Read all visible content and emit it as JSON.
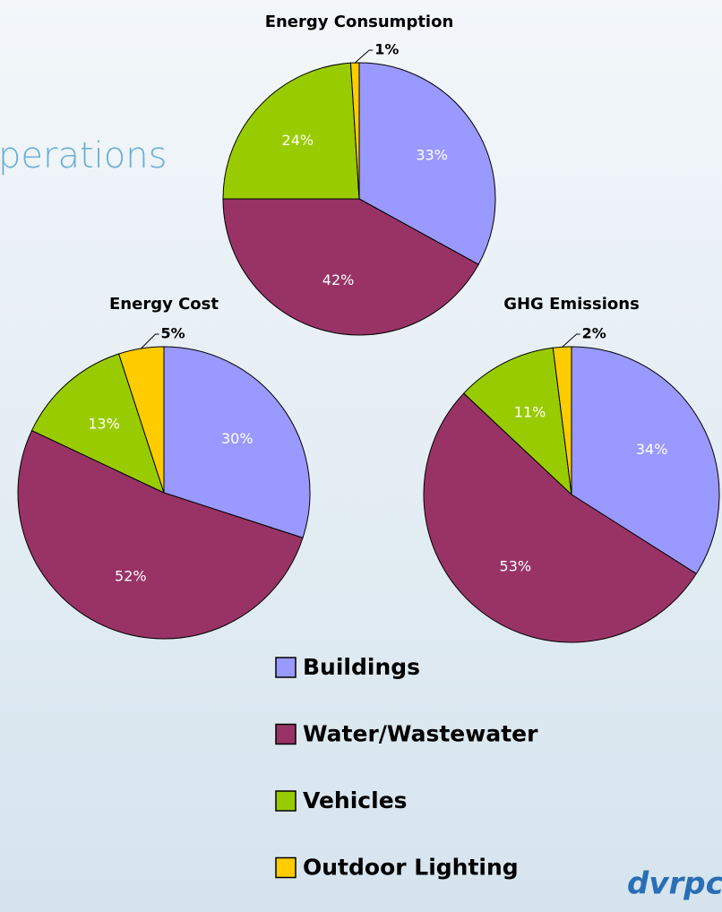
{
  "header": {
    "title": "perations"
  },
  "logo": "dvrpc",
  "legend": {
    "items": [
      "Buildings",
      "Water/Wastewater",
      "Vehicles",
      "Outdoor Lighting"
    ],
    "colors": [
      "#9999ff",
      "#993366",
      "#99cc00",
      "#ffcc00"
    ]
  },
  "chart_data": [
    {
      "type": "pie",
      "title": "Energy Consumption",
      "values": [
        33,
        42,
        24,
        1
      ],
      "value_labels": [
        "33%",
        "42%",
        "24%",
        "1%"
      ]
    },
    {
      "type": "pie",
      "title": "Energy Cost",
      "values": [
        30,
        52,
        13,
        5
      ],
      "value_labels": [
        "30%",
        "52%",
        "13%",
        "5%"
      ]
    },
    {
      "type": "pie",
      "title": "GHG Emissions",
      "values": [
        34,
        53,
        11,
        2
      ],
      "value_labels": [
        "34%",
        "53%",
        "11%",
        "2%"
      ]
    }
  ]
}
